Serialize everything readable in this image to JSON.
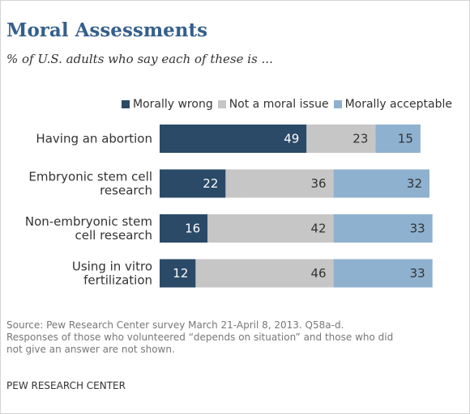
{
  "title": "Moral Assessments",
  "subtitle": "% of U.S. adults who say each of these is ...",
  "colors": {
    "morally_wrong": "#2b4a68",
    "not_moral_issue": "#c6c6c6",
    "morally_acceptable": "#8eb1cf"
  },
  "chart_data": {
    "type": "bar",
    "orientation": "horizontal",
    "stacked": true,
    "categories": [
      [
        "Having an abortion"
      ],
      [
        "Embryonic stem cell",
        "research"
      ],
      [
        "Non-embryonic stem",
        "cell research"
      ],
      [
        "Using in vitro",
        "fertilization"
      ]
    ],
    "series": [
      {
        "name": "Morally wrong",
        "values": [
          49,
          22,
          16,
          12
        ]
      },
      {
        "name": "Not a moral issue",
        "values": [
          23,
          36,
          42,
          46
        ]
      },
      {
        "name": "Morally acceptable",
        "values": [
          15,
          32,
          33,
          33
        ]
      }
    ],
    "legend_position": "top-right"
  },
  "source_lines": [
    "Source: Pew Research Center survey March 21-April 8, 2013. Q58a-d.",
    "Responses of those who volunteered “depends on situation” and those who did",
    "not give an answer are not shown."
  ],
  "organization": "PEW RESEARCH CENTER"
}
